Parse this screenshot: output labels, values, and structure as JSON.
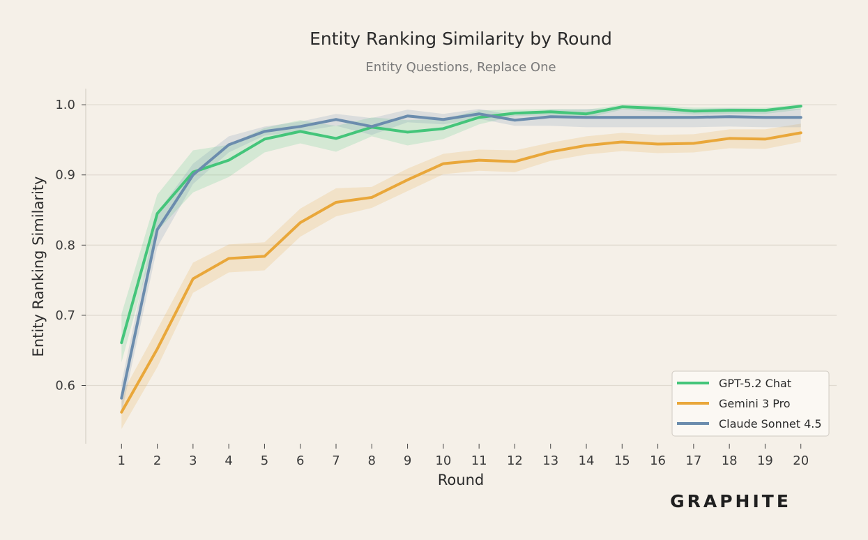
{
  "chart_data": {
    "type": "line",
    "title": "Entity Ranking Similarity by Round",
    "subtitle": "Entity Questions, Replace One",
    "xlabel": "Round",
    "ylabel": "Entity Ranking Similarity",
    "x": [
      1,
      2,
      3,
      4,
      5,
      6,
      7,
      8,
      9,
      10,
      11,
      12,
      13,
      14,
      15,
      16,
      17,
      18,
      19,
      20
    ],
    "xlim": [
      0.0,
      21.0
    ],
    "ylim": [
      0.517,
      1.023
    ],
    "y_ticks": [
      0.6,
      0.7,
      0.8,
      0.9,
      1.0
    ],
    "y_tick_labels": [
      "0.6",
      "0.7",
      "0.8",
      "0.9",
      "1.0"
    ],
    "grid": "horizontal",
    "legend_position": "bottom-right",
    "series": [
      {
        "name": "GPT-5.2 Chat",
        "color": "#44c57a",
        "values": [
          0.661,
          0.845,
          0.904,
          0.921,
          0.951,
          0.962,
          0.952,
          0.968,
          0.961,
          0.966,
          0.982,
          0.988,
          0.99,
          0.987,
          0.997,
          0.995,
          0.991,
          0.992,
          0.992,
          0.998
        ],
        "lower": [
          0.633,
          0.82,
          0.875,
          0.897,
          0.932,
          0.945,
          0.933,
          0.955,
          0.942,
          0.951,
          0.972,
          0.984,
          0.985,
          0.981,
          0.993,
          0.99,
          0.986,
          0.987,
          0.987,
          0.993
        ],
        "upper": [
          0.702,
          0.872,
          0.935,
          0.943,
          0.967,
          0.978,
          0.97,
          0.982,
          0.978,
          0.98,
          0.992,
          0.993,
          0.994,
          0.993,
          1.0,
          0.999,
          0.996,
          0.996,
          0.996,
          1.0
        ]
      },
      {
        "name": "Gemini 3 Pro",
        "color": "#e9a73a",
        "values": [
          0.562,
          0.652,
          0.752,
          0.781,
          0.784,
          0.832,
          0.861,
          0.868,
          0.893,
          0.916,
          0.921,
          0.919,
          0.933,
          0.942,
          0.947,
          0.944,
          0.945,
          0.952,
          0.951,
          0.96
        ],
        "lower": [
          0.538,
          0.626,
          0.732,
          0.761,
          0.764,
          0.812,
          0.841,
          0.853,
          0.877,
          0.901,
          0.906,
          0.904,
          0.92,
          0.929,
          0.934,
          0.931,
          0.932,
          0.938,
          0.937,
          0.947
        ],
        "upper": [
          0.587,
          0.68,
          0.775,
          0.801,
          0.804,
          0.852,
          0.881,
          0.883,
          0.909,
          0.93,
          0.936,
          0.935,
          0.946,
          0.955,
          0.96,
          0.957,
          0.958,
          0.965,
          0.965,
          0.973
        ]
      },
      {
        "name": "Claude Sonnet 4.5",
        "color": "#6b8cad",
        "values": [
          0.582,
          0.822,
          0.9,
          0.943,
          0.962,
          0.969,
          0.979,
          0.969,
          0.984,
          0.979,
          0.987,
          0.978,
          0.983,
          0.982,
          0.982,
          0.982,
          0.982,
          0.983,
          0.982,
          0.982
        ],
        "lower": [
          0.56,
          0.797,
          0.887,
          0.932,
          0.956,
          0.962,
          0.97,
          0.957,
          0.975,
          0.972,
          0.98,
          0.97,
          0.97,
          0.968,
          0.968,
          0.968,
          0.968,
          0.969,
          0.968,
          0.968
        ],
        "upper": [
          0.604,
          0.846,
          0.916,
          0.955,
          0.969,
          0.976,
          0.987,
          0.981,
          0.993,
          0.987,
          0.994,
          0.985,
          0.993,
          0.994,
          0.994,
          0.994,
          0.994,
          0.995,
          0.994,
          0.994
        ]
      }
    ]
  },
  "branding": {
    "logo_text": "GRAPHITE"
  }
}
